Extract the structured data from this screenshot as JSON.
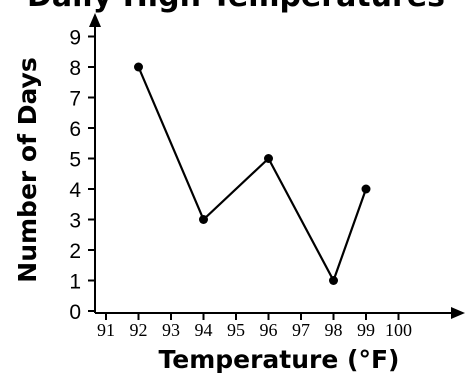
{
  "chart_data": {
    "type": "line",
    "title": "Daily High Temperatures",
    "xlabel": "Temperature (°F)",
    "ylabel": "Number of Days",
    "x_ticks": [
      "91",
      "92",
      "93",
      "94",
      "95",
      "96",
      "97",
      "98",
      "99",
      "100"
    ],
    "y_ticks": [
      "0",
      "1",
      "2",
      "3",
      "4",
      "5",
      "6",
      "7",
      "8",
      "9"
    ],
    "xlim": [
      91,
      100
    ],
    "ylim": [
      0,
      9
    ],
    "grid": false,
    "series": [
      {
        "x": [
          92,
          94,
          96,
          98,
          99
        ],
        "y": [
          8,
          3,
          5,
          1,
          4
        ]
      }
    ],
    "line_color": "#000000",
    "marker_color": "#000000"
  }
}
